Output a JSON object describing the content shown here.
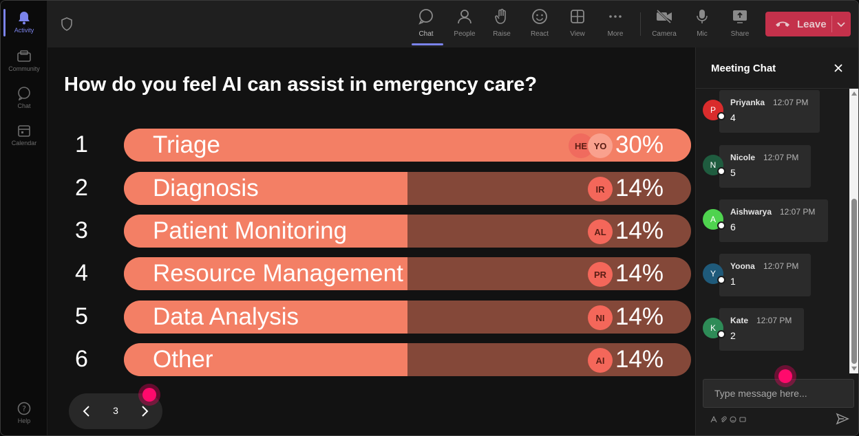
{
  "rail": {
    "items": [
      {
        "label": "Activity",
        "icon": "bell-icon",
        "active": true
      },
      {
        "label": "Community",
        "icon": "community-icon",
        "active": false
      },
      {
        "label": "Chat",
        "icon": "chat-icon",
        "active": false
      },
      {
        "label": "Calendar",
        "icon": "calendar-icon",
        "active": false
      }
    ],
    "help_label": "Help"
  },
  "toolbar": {
    "buttons": [
      {
        "label": "Chat",
        "icon": "chat-icon",
        "active": true
      },
      {
        "label": "People",
        "icon": "people-icon"
      },
      {
        "label": "Raise",
        "icon": "raise-hand-icon"
      },
      {
        "label": "React",
        "icon": "emoji-icon"
      },
      {
        "label": "View",
        "icon": "grid-view-icon"
      },
      {
        "label": "More",
        "icon": "more-icon"
      },
      {
        "label": "Camera",
        "icon": "camera-off-icon"
      },
      {
        "label": "Mic",
        "icon": "mic-icon"
      },
      {
        "label": "Share",
        "icon": "share-icon"
      }
    ],
    "leave_label": "Leave"
  },
  "poll": {
    "question": "How do you feel AI can assist in emergency care?",
    "options": [
      {
        "num": "1",
        "label": "Triage",
        "percent": "30%",
        "share": 0.3,
        "avatars": [
          "HE",
          "YO"
        ]
      },
      {
        "num": "2",
        "label": "Diagnosis",
        "percent": "14%",
        "share": 0.14,
        "avatars": [
          "IR"
        ]
      },
      {
        "num": "3",
        "label": "Patient Monitoring",
        "percent": "14%",
        "share": 0.14,
        "avatars": [
          "AL"
        ]
      },
      {
        "num": "4",
        "label": "Resource Management",
        "percent": "14%",
        "share": 0.14,
        "avatars": [
          "PR"
        ]
      },
      {
        "num": "5",
        "label": "Data Analysis",
        "percent": "14%",
        "share": 0.14,
        "avatars": [
          "NI"
        ]
      },
      {
        "num": "6",
        "label": "Other",
        "percent": "14%",
        "share": 0.14,
        "avatars": [
          "AI"
        ]
      }
    ],
    "page": "3"
  },
  "chat": {
    "title": "Meeting Chat",
    "messages": [
      {
        "initial": "P",
        "name": "Priyanka",
        "time": "12:07 PM",
        "text": "4",
        "color": "#d92c2c"
      },
      {
        "initial": "N",
        "name": "Nicole",
        "time": "12:07 PM",
        "text": "5",
        "color": "#1f5c3f"
      },
      {
        "initial": "A",
        "name": "Aishwarya",
        "time": "12:07 PM",
        "text": "6",
        "color": "#4fd34f"
      },
      {
        "initial": "Y",
        "name": "Yoona",
        "time": "12:07 PM",
        "text": "1",
        "color": "#1f5a7a"
      },
      {
        "initial": "K",
        "name": "Kate",
        "time": "12:07 PM",
        "text": "2",
        "color": "#2e8b57"
      }
    ],
    "placeholder": "Type message here..."
  },
  "colors": {
    "bar_fill": "#f37f65",
    "bar_track": "#844839",
    "leave": "#c4314b",
    "accent": "#7b83eb"
  }
}
